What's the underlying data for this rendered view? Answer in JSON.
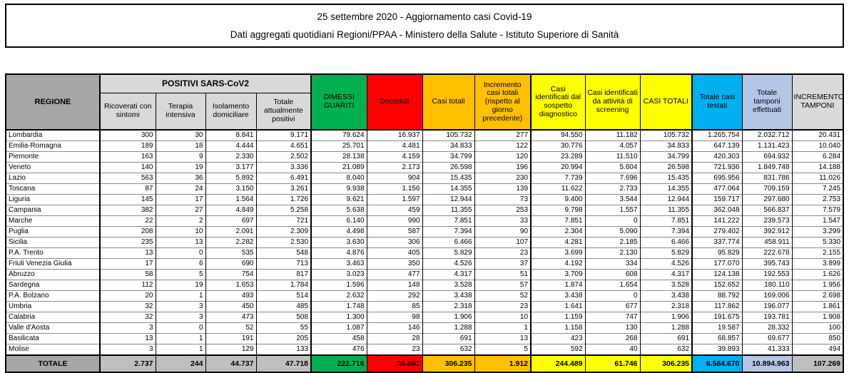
{
  "title": {
    "line1": "25 settembre 2020 - Aggiornamento casi Covid-19",
    "line2": "Dati aggregati quotidiani Regioni/PPAA - Ministero della Salute - Istituto Superiore di Sanità"
  },
  "table": {
    "region_header": "REGIONE",
    "positivi_group_header": "POSITIVI SARS-CoV2",
    "positivi_columns": [
      "Ricoverati con sintomi",
      "Terapia intensiva",
      "Isolamento domiciliare",
      "Totale attualmente positivi"
    ],
    "colored_columns": [
      {
        "label": "DIMESSI GUARITI",
        "bg": "#00B050",
        "text": "#000000"
      },
      {
        "label": "Deceduti",
        "bg": "#FF0000",
        "text": "#000000"
      },
      {
        "label": "Casi totali",
        "bg": "#FFC000",
        "text": "#000000"
      },
      {
        "label": "Incremento casi totali (rispetto al giorno precedente)",
        "bg": "#FFC000",
        "text": "#000000"
      },
      {
        "label": "Casi identificati dal sospetto diagnostico",
        "bg": "#FFFF00",
        "text": "#000000"
      },
      {
        "label": "Casi identificati da attività di screening",
        "bg": "#FFFF00",
        "text": "#000000"
      },
      {
        "label": "CASI TOTALI",
        "bg": "#FFFF00",
        "text": "#000000"
      },
      {
        "label": "Totale casi testati",
        "bg": "#00B0F0",
        "text": "#000000"
      },
      {
        "label": "Totale tamponi effettuati",
        "bg": "#B4C6E7",
        "text": "#000000"
      },
      {
        "label": "INCREMENTO TAMPONI",
        "bg": "#D9D9D9",
        "text": "#000000"
      }
    ],
    "rows": [
      {
        "region": "Lombardia",
        "values": [
          "300",
          "30",
          "8.841",
          "9.171",
          "79.624",
          "16.937",
          "105.732",
          "277",
          "94.550",
          "11.182",
          "105.732",
          "1.265.754",
          "2.032.712",
          "20.431"
        ]
      },
      {
        "region": "Emilia-Romagna",
        "values": [
          "189",
          "18",
          "4.444",
          "4.651",
          "25.701",
          "4.481",
          "34.833",
          "122",
          "30.776",
          "4.057",
          "34.833",
          "647.139",
          "1.131.423",
          "10.040"
        ]
      },
      {
        "region": "Piemonte",
        "values": [
          "163",
          "9",
          "2.330",
          "2.502",
          "28.138",
          "4.159",
          "34.799",
          "120",
          "23.289",
          "11.510",
          "34.799",
          "420.303",
          "694.932",
          "6.284"
        ]
      },
      {
        "region": "Veneto",
        "values": [
          "140",
          "19",
          "3.177",
          "3.336",
          "21.089",
          "2.173",
          "26.598",
          "196",
          "20.994",
          "5.604",
          "26.598",
          "721.936",
          "1.849.748",
          "14.188"
        ]
      },
      {
        "region": "Lazio",
        "values": [
          "563",
          "36",
          "5.892",
          "6.491",
          "8.040",
          "904",
          "15.435",
          "230",
          "7.739",
          "7.696",
          "15.435",
          "695.956",
          "831.786",
          "11.026"
        ]
      },
      {
        "region": "Toscana",
        "values": [
          "87",
          "24",
          "3.150",
          "3.261",
          "9.938",
          "1.156",
          "14.355",
          "139",
          "11.622",
          "2.733",
          "14.355",
          "477.064",
          "709.159",
          "7.245"
        ]
      },
      {
        "region": "Liguria",
        "values": [
          "145",
          "17",
          "1.564",
          "1.726",
          "9.621",
          "1.597",
          "12.944",
          "73",
          "9.400",
          "3.544",
          "12.944",
          "159.717",
          "297.680",
          "2.753"
        ]
      },
      {
        "region": "Campania",
        "values": [
          "382",
          "27",
          "4.849",
          "5.258",
          "5.638",
          "459",
          "11.355",
          "253",
          "9.798",
          "1.557",
          "11.355",
          "362.048",
          "566.837",
          "7.579"
        ]
      },
      {
        "region": "Marche",
        "values": [
          "22",
          "2",
          "697",
          "721",
          "6.140",
          "990",
          "7.851",
          "33",
          "7.851",
          "0",
          "7.851",
          "141.222",
          "239.573",
          "1.547"
        ]
      },
      {
        "region": "Puglia",
        "values": [
          "208",
          "10",
          "2.091",
          "2.309",
          "4.498",
          "587",
          "7.394",
          "90",
          "2.304",
          "5.090",
          "7.394",
          "279.402",
          "392.912",
          "3.299"
        ]
      },
      {
        "region": "Sicilia",
        "values": [
          "235",
          "13",
          "2.282",
          "2.530",
          "3.630",
          "306",
          "6.466",
          "107",
          "4.281",
          "2.185",
          "6.466",
          "337.774",
          "458.911",
          "5.330"
        ]
      },
      {
        "region": "P.A. Trento",
        "values": [
          "13",
          "0",
          "535",
          "548",
          "4.876",
          "405",
          "5.829",
          "23",
          "3.699",
          "2.130",
          "5.829",
          "95.829",
          "222.678",
          "2.155"
        ]
      },
      {
        "region": "Friuli Venezia Giulia",
        "values": [
          "17",
          "6",
          "690",
          "713",
          "3.463",
          "350",
          "4.526",
          "37",
          "4.192",
          "334",
          "4.526",
          "177.070",
          "395.743",
          "3.899"
        ]
      },
      {
        "region": "Abruzzo",
        "values": [
          "58",
          "5",
          "754",
          "817",
          "3.023",
          "477",
          "4.317",
          "51",
          "3.709",
          "608",
          "4.317",
          "124.138",
          "192.553",
          "1.626"
        ]
      },
      {
        "region": "Sardegna",
        "values": [
          "112",
          "19",
          "1.653",
          "1.784",
          "1.596",
          "148",
          "3.528",
          "57",
          "1.874",
          "1.654",
          "3.528",
          "152.652",
          "180.110",
          "1.956"
        ]
      },
      {
        "region": "P.A. Bolzano",
        "values": [
          "20",
          "1",
          "493",
          "514",
          "2.632",
          "292",
          "3.438",
          "52",
          "3.438",
          "0",
          "3.438",
          "88.792",
          "169.006",
          "2.698"
        ]
      },
      {
        "region": "Umbria",
        "values": [
          "32",
          "3",
          "450",
          "485",
          "1.748",
          "85",
          "2.318",
          "23",
          "1.641",
          "677",
          "2.318",
          "117.862",
          "196.077",
          "1.861"
        ]
      },
      {
        "region": "Calabria",
        "values": [
          "32",
          "3",
          "473",
          "508",
          "1.300",
          "98",
          "1.906",
          "10",
          "1.159",
          "747",
          "1.906",
          "191.675",
          "193.781",
          "1.908"
        ]
      },
      {
        "region": "Valle d'Aosta",
        "values": [
          "3",
          "0",
          "52",
          "55",
          "1.087",
          "146",
          "1.288",
          "1",
          "1.158",
          "130",
          "1.288",
          "19.587",
          "28.332",
          "100"
        ]
      },
      {
        "region": "Basilicata",
        "values": [
          "13",
          "1",
          "191",
          "205",
          "458",
          "28",
          "691",
          "13",
          "423",
          "268",
          "691",
          "68.857",
          "69.677",
          "850"
        ]
      },
      {
        "region": "Molise",
        "values": [
          "3",
          "1",
          "129",
          "133",
          "476",
          "23",
          "632",
          "5",
          "592",
          "40",
          "632",
          "39.893",
          "41.333",
          "494"
        ]
      }
    ],
    "total_row": {
      "label": "TOTALE",
      "values": [
        "2.737",
        "244",
        "44.737",
        "47.718",
        "222.716",
        "35.801",
        "306.235",
        "1.912",
        "244.489",
        "61.746",
        "306.235",
        "6.584.670",
        "10.894.963",
        "107.269"
      ]
    },
    "colors": {
      "header_dark_gray": "#A6A6A6",
      "header_light_gray": "#D9D9D9",
      "total_gray": "#BFBFBF",
      "green": "#00B050",
      "red": "#FF0000",
      "orange": "#FFC000",
      "yellow": "#FFFF00",
      "blue": "#00B0F0",
      "light_blue": "#B4C6E7"
    }
  }
}
